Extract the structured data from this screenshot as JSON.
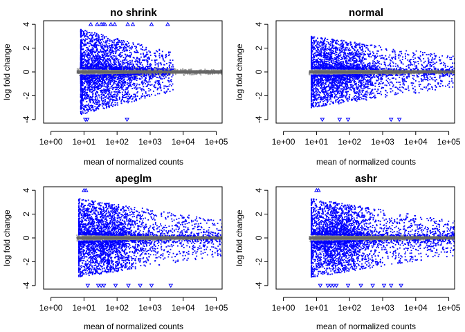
{
  "colors": {
    "significant": "#0000ff",
    "not_significant": "#999999",
    "zero_line": "#666666",
    "axis": "#000000",
    "background": "#ffffff"
  },
  "chart_data": [
    {
      "type": "scatter",
      "title": "no shrink",
      "xlabel": "mean of normalized counts",
      "ylabel": "log fold change",
      "x_scale": "log10",
      "xlim": [
        0.6,
        150000
      ],
      "ylim": [
        -4.3,
        4.3
      ],
      "x_ticks": [
        1,
        10,
        100,
        1000,
        10000,
        100000
      ],
      "x_tick_labels": [
        "1e+00",
        "1e+01",
        "1e+02",
        "1e+03",
        "1e+04",
        "1e+05"
      ],
      "y_ticks": [
        -4,
        -2,
        0,
        2,
        4
      ],
      "y_tick_labels": [
        "-4",
        "-2",
        "0",
        "2",
        "4"
      ],
      "grid": false,
      "legend": "none",
      "series": [
        {
          "role": "significant",
          "color": "#0000ff",
          "marker": "point",
          "x_range": [
            8,
            5000
          ],
          "abs_y_range": [
            0.15,
            3.6
          ],
          "peak_x": 30,
          "approx_count": 3000
        },
        {
          "role": "not_significant",
          "color": "#999999",
          "marker": "point",
          "x_range": [
            6,
            150000
          ],
          "abs_y_range": [
            0,
            0.6
          ],
          "approx_count": 1800
        }
      ],
      "outliers_capped": [
        {
          "x": 16,
          "y": 4
        },
        {
          "x": 25,
          "y": 4
        },
        {
          "x": 33,
          "y": 4
        },
        {
          "x": 38,
          "y": 4
        },
        {
          "x": 43,
          "y": 4
        },
        {
          "x": 65,
          "y": 4
        },
        {
          "x": 85,
          "y": 4
        },
        {
          "x": 210,
          "y": 4
        },
        {
          "x": 300,
          "y": 4
        },
        {
          "x": 1100,
          "y": 4
        },
        {
          "x": 3400,
          "y": 4
        },
        {
          "x": 11,
          "y": -4
        },
        {
          "x": 12.5,
          "y": -4
        },
        {
          "x": 200,
          "y": -4
        }
      ]
    },
    {
      "type": "scatter",
      "title": "normal",
      "xlabel": "mean of normalized counts",
      "ylabel": "log fold change",
      "x_scale": "log10",
      "xlim": [
        0.6,
        150000
      ],
      "ylim": [
        -4.3,
        4.3
      ],
      "x_ticks": [
        1,
        10,
        100,
        1000,
        10000,
        100000
      ],
      "x_tick_labels": [
        "1e+00",
        "1e+01",
        "1e+02",
        "1e+03",
        "1e+04",
        "1e+05"
      ],
      "y_ticks": [
        -4,
        -2,
        0,
        2,
        4
      ],
      "y_tick_labels": [
        "-4",
        "-2",
        "0",
        "2",
        "4"
      ],
      "grid": false,
      "legend": "none",
      "series": [
        {
          "role": "significant",
          "color": "#0000ff",
          "marker": "point",
          "x_range": [
            7,
            150000
          ],
          "abs_y_range": [
            0.15,
            3.0
          ],
          "peak_x": 40,
          "approx_count": 3200
        },
        {
          "role": "not_significant",
          "color": "#999999",
          "marker": "point",
          "x_range": [
            6,
            150000
          ],
          "abs_y_range": [
            0,
            0.45
          ],
          "approx_count": 1800
        }
      ],
      "outliers_capped": [
        {
          "x": 15,
          "y": -4
        },
        {
          "x": 50,
          "y": -4
        },
        {
          "x": 90,
          "y": -4
        },
        {
          "x": 1800,
          "y": -4
        },
        {
          "x": 3200,
          "y": -4
        }
      ]
    },
    {
      "type": "scatter",
      "title": "apeglm",
      "xlabel": "mean of normalized counts",
      "ylabel": "log fold change",
      "x_scale": "log10",
      "xlim": [
        0.6,
        150000
      ],
      "ylim": [
        -4.3,
        4.3
      ],
      "x_ticks": [
        1,
        10,
        100,
        1000,
        10000,
        100000
      ],
      "x_tick_labels": [
        "1e+00",
        "1e+01",
        "1e+02",
        "1e+03",
        "1e+04",
        "1e+05"
      ],
      "y_ticks": [
        -4,
        -2,
        0,
        2,
        4
      ],
      "y_tick_labels": [
        "-4",
        "-2",
        "0",
        "2",
        "4"
      ],
      "grid": false,
      "legend": "none",
      "series": [
        {
          "role": "significant",
          "color": "#0000ff",
          "marker": "point",
          "x_range": [
            7,
            150000
          ],
          "abs_y_range": [
            0.15,
            3.3
          ],
          "peak_x": 40,
          "approx_count": 3400
        },
        {
          "role": "not_significant",
          "color": "#999999",
          "marker": "point",
          "x_range": [
            6,
            150000
          ],
          "abs_y_range": [
            0,
            0.4
          ],
          "approx_count": 1800
        }
      ],
      "outliers_capped": [
        {
          "x": 10,
          "y": 4
        },
        {
          "x": 11.5,
          "y": 4
        },
        {
          "x": 13,
          "y": -4
        },
        {
          "x": 27,
          "y": -4
        },
        {
          "x": 33,
          "y": -4
        },
        {
          "x": 40,
          "y": -4
        },
        {
          "x": 90,
          "y": -4
        },
        {
          "x": 220,
          "y": -4
        },
        {
          "x": 500,
          "y": -4
        },
        {
          "x": 1100,
          "y": -4
        },
        {
          "x": 4200,
          "y": -4
        }
      ]
    },
    {
      "type": "scatter",
      "title": "ashr",
      "xlabel": "mean of normalized counts",
      "ylabel": "log fold change",
      "x_scale": "log10",
      "xlim": [
        0.6,
        150000
      ],
      "ylim": [
        -4.3,
        4.3
      ],
      "x_ticks": [
        1,
        10,
        100,
        1000,
        10000,
        100000
      ],
      "x_tick_labels": [
        "1e+00",
        "1e+01",
        "1e+02",
        "1e+03",
        "1e+04",
        "1e+05"
      ],
      "y_ticks": [
        -4,
        -2,
        0,
        2,
        4
      ],
      "y_tick_labels": [
        "-4",
        "-2",
        "0",
        "2",
        "4"
      ],
      "grid": false,
      "legend": "none",
      "series": [
        {
          "role": "significant",
          "color": "#0000ff",
          "marker": "point",
          "x_range": [
            7,
            150000
          ],
          "abs_y_range": [
            0.15,
            3.3
          ],
          "peak_x": 40,
          "approx_count": 3400
        },
        {
          "role": "not_significant",
          "color": "#999999",
          "marker": "point",
          "x_range": [
            6,
            150000
          ],
          "abs_y_range": [
            0,
            0.4
          ],
          "approx_count": 1800
        }
      ],
      "outliers_capped": [
        {
          "x": 10,
          "y": 4
        },
        {
          "x": 11.5,
          "y": 4
        },
        {
          "x": 13,
          "y": -4
        },
        {
          "x": 22,
          "y": -4
        },
        {
          "x": 27,
          "y": -4
        },
        {
          "x": 33,
          "y": -4
        },
        {
          "x": 40,
          "y": -4
        },
        {
          "x": 90,
          "y": -4
        },
        {
          "x": 220,
          "y": -4
        },
        {
          "x": 500,
          "y": -4
        },
        {
          "x": 1100,
          "y": -4
        },
        {
          "x": 1800,
          "y": -4
        },
        {
          "x": 3600,
          "y": -4
        }
      ]
    }
  ]
}
